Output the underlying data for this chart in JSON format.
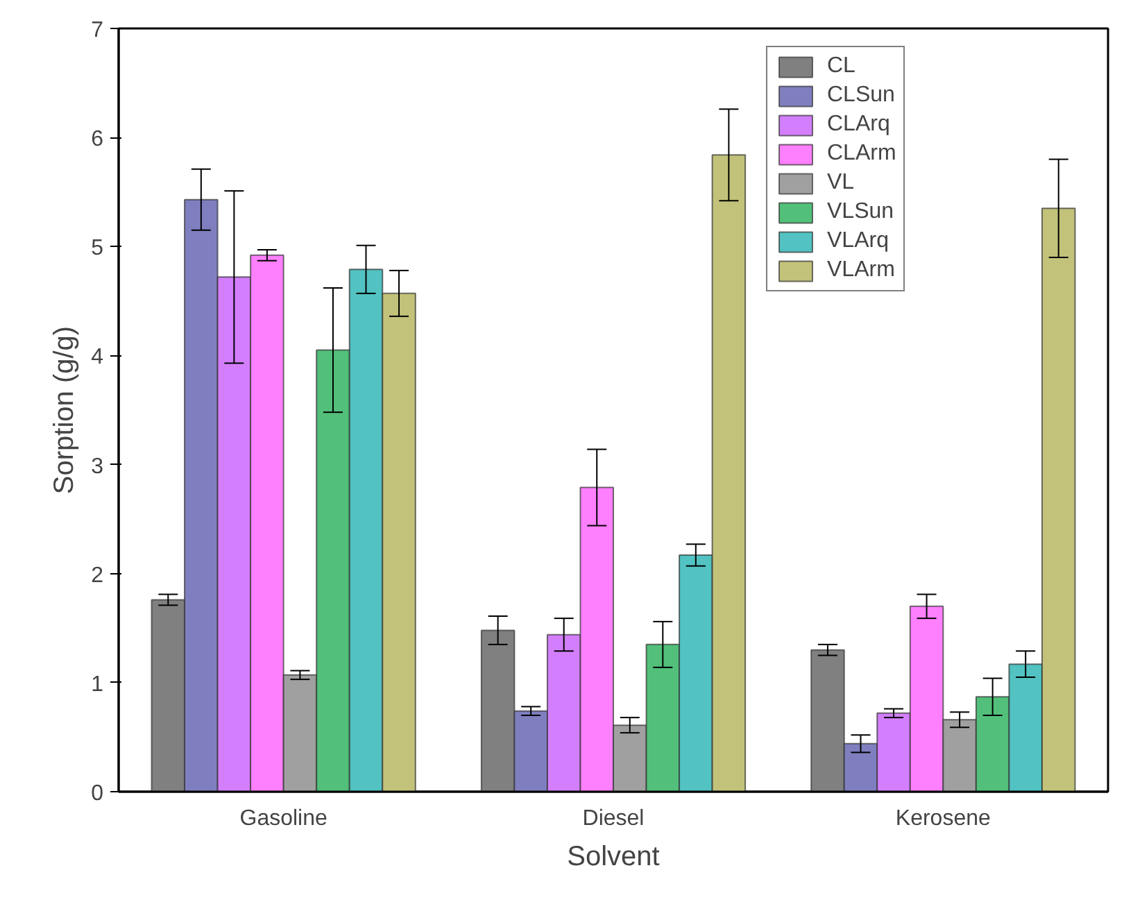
{
  "chart_data": {
    "type": "bar",
    "xlabel": "Solvent",
    "ylabel": "Sorption (g/g)",
    "categories": [
      "Gasoline",
      "Diesel",
      "Kerosene"
    ],
    "ylim": [
      0,
      7
    ],
    "yticks": [
      0,
      1,
      2,
      3,
      4,
      5,
      6,
      7
    ],
    "grid": false,
    "legend": "top right",
    "series": [
      {
        "name": "CL",
        "color": "#808080",
        "values": [
          1.76,
          1.48,
          1.3
        ],
        "errors": [
          0.05,
          0.13,
          0.05
        ]
      },
      {
        "name": "CLSun",
        "color": "#7f7fc0",
        "values": [
          5.43,
          0.74,
          0.44
        ],
        "errors": [
          0.28,
          0.04,
          0.08
        ]
      },
      {
        "name": "CLArq",
        "color": "#d37ffd",
        "values": [
          4.72,
          1.44,
          0.72
        ],
        "errors": [
          0.79,
          0.15,
          0.04
        ]
      },
      {
        "name": "CLArm",
        "color": "#ff80ff",
        "values": [
          4.92,
          2.79,
          1.7
        ],
        "errors": [
          0.05,
          0.35,
          0.11
        ]
      },
      {
        "name": "VL",
        "color": "#a0a0a0",
        "values": [
          1.07,
          0.61,
          0.66
        ],
        "errors": [
          0.04,
          0.07,
          0.07
        ]
      },
      {
        "name": "VLSun",
        "color": "#52c07a",
        "values": [
          4.05,
          1.35,
          0.87
        ],
        "errors": [
          0.57,
          0.21,
          0.17
        ]
      },
      {
        "name": "VLArq",
        "color": "#52c2c2",
        "values": [
          4.79,
          2.17,
          1.17
        ],
        "errors": [
          0.22,
          0.1,
          0.12
        ]
      },
      {
        "name": "VLArm",
        "color": "#c2c27a",
        "values": [
          4.57,
          5.84,
          5.35
        ],
        "errors": [
          0.21,
          0.42,
          0.45
        ]
      }
    ]
  }
}
